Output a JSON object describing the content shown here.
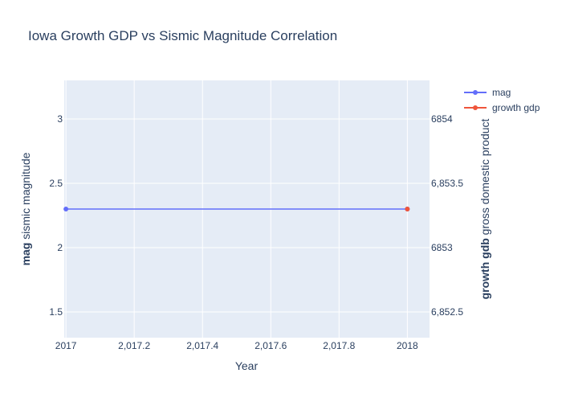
{
  "chart_data": {
    "type": "line",
    "title": "Iowa Growth GDP vs Sismic Magnitude Correlation",
    "xlabel": "Year",
    "ylabel_bold": "mag",
    "ylabel_rest": " sismic magnitude",
    "y2label_bold": "growth gdb",
    "y2label_rest": " gross domestic product",
    "xlim": [
      2016.995,
      2018.065
    ],
    "ylim": [
      1.3,
      3.3
    ],
    "y2lim": [
      6852.3,
      6854.3
    ],
    "x_ticks": [
      {
        "value": 2017,
        "label": "2017"
      },
      {
        "value": 2017.2,
        "label": "2,017.2"
      },
      {
        "value": 2017.4,
        "label": "2,017.4"
      },
      {
        "value": 2017.6,
        "label": "2,017.6"
      },
      {
        "value": 2017.8,
        "label": "2,017.8"
      },
      {
        "value": 2018,
        "label": "2018"
      }
    ],
    "y_ticks": [
      {
        "value": 1.5,
        "label": "1.5"
      },
      {
        "value": 2,
        "label": "2"
      },
      {
        "value": 2.5,
        "label": "2.5"
      },
      {
        "value": 3,
        "label": "3"
      }
    ],
    "y2_ticks": [
      {
        "value": 6852.5,
        "label": "6,852.5"
      },
      {
        "value": 6853,
        "label": "6853"
      },
      {
        "value": 6853.5,
        "label": "6,853.5"
      },
      {
        "value": 6854,
        "label": "6854"
      }
    ],
    "series": [
      {
        "name": "mag",
        "axis": "y",
        "color": "#636efa",
        "x": [
          2017,
          2018
        ],
        "y": [
          2.3,
          2.3
        ]
      },
      {
        "name": "growth gdp",
        "axis": "y2",
        "color": "#ef553b",
        "x": [
          2018
        ],
        "y": [
          6853.3
        ]
      }
    ],
    "grid": true,
    "legend": "top-right",
    "plot_bg": "#e5ecf6"
  }
}
